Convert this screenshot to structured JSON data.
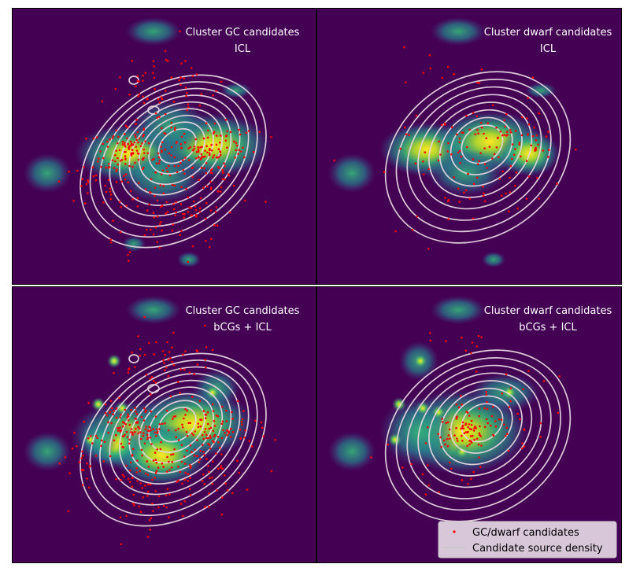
{
  "chart_data": [
    {
      "type": "heatmap",
      "panel": "top-left",
      "title_lines": [
        "Cluster GC candidates",
        "ICL"
      ],
      "grid": false
    },
    {
      "type": "heatmap",
      "panel": "top-right",
      "title_lines": [
        "Cluster dwarf candidates",
        "ICL"
      ],
      "grid": false
    },
    {
      "type": "heatmap",
      "panel": "bottom-left",
      "title_lines": [
        "Cluster GC candidates",
        "bCGs + ICL"
      ],
      "grid": false
    },
    {
      "type": "heatmap",
      "panel": "bottom-right",
      "title_lines": [
        "Cluster dwarf candidates",
        "bCGs + ICL"
      ],
      "grid": false
    }
  ],
  "legend": {
    "placement": "bottom-right",
    "entries": [
      {
        "label": "GC/dwarf candidates",
        "marker": "red-point",
        "color": "#ff0000"
      },
      {
        "label": "Candidate source density",
        "marker": "line",
        "color": "#c8c8c8"
      }
    ]
  },
  "colors": {
    "background": "#440154",
    "points": "#ff0000",
    "contours": "#e6d5df",
    "colormap": "viridis"
  }
}
